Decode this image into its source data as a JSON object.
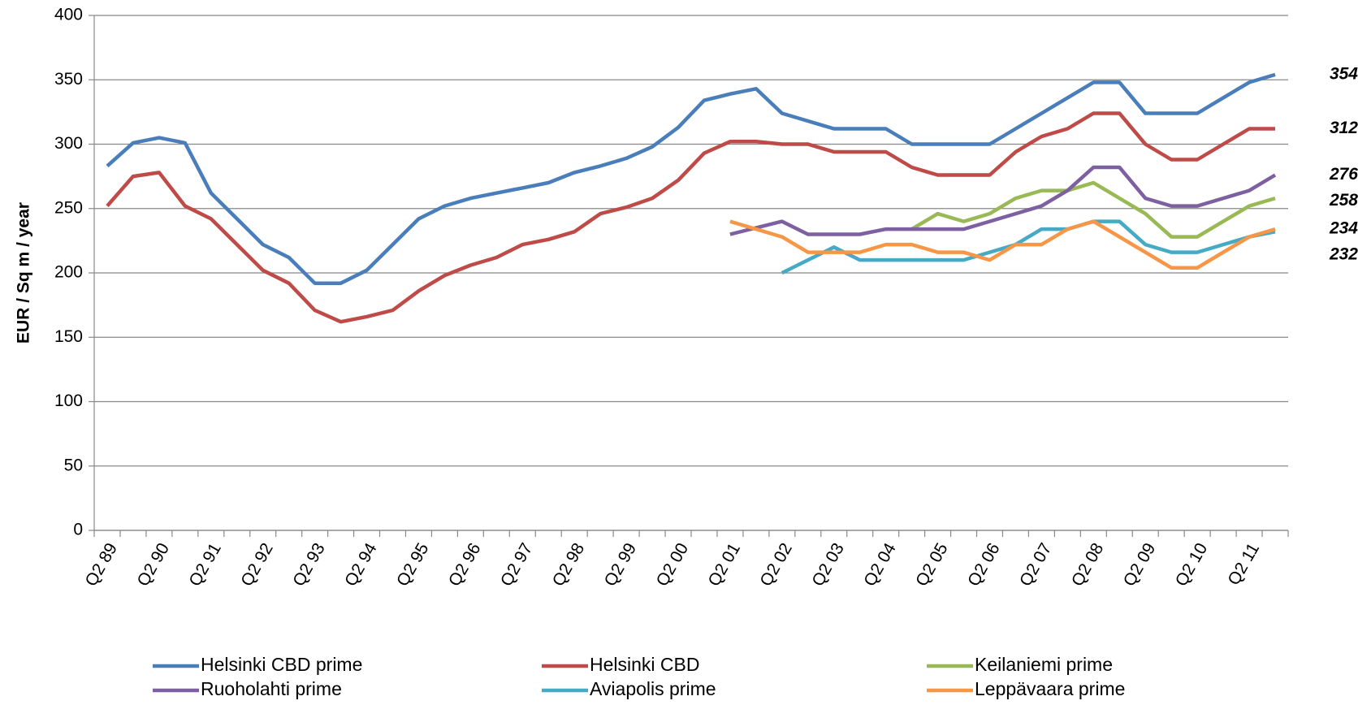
{
  "chart_data": {
    "type": "line",
    "ylabel": "EUR / Sq m / year",
    "categories": [
      "Q2 89",
      null,
      "Q2 90",
      null,
      "Q2 91",
      null,
      "Q2 92",
      null,
      "Q2 93",
      null,
      "Q2 94",
      null,
      "Q2 95",
      null,
      "Q2 96",
      null,
      "Q2 97",
      null,
      "Q2 98",
      null,
      "Q2 99",
      null,
      "Q2 00",
      null,
      "Q2 01",
      null,
      "Q2 02",
      null,
      "Q2 03",
      null,
      "Q2 04",
      null,
      "Q2 05",
      null,
      "Q2 06",
      null,
      "Q2 07",
      null,
      "Q2 08",
      null,
      "Q2 09",
      null,
      "Q2 10",
      null,
      "Q2 11",
      null
    ],
    "series": [
      {
        "name": "Helsinki CBD prime",
        "color": "#4a7ebb",
        "values": [
          283,
          301,
          305,
          301,
          262,
          242,
          222,
          212,
          192,
          192,
          202,
          222,
          242,
          252,
          258,
          262,
          266,
          270,
          278,
          283,
          289,
          298,
          313,
          334,
          339,
          343,
          324,
          318,
          312,
          312,
          312,
          300,
          300,
          300,
          300,
          312,
          324,
          336,
          348,
          348,
          324,
          324,
          324,
          336,
          348,
          354
        ]
      },
      {
        "name": "Helsinki CBD",
        "color": "#be4b48",
        "values": [
          252,
          275,
          278,
          252,
          242,
          222,
          202,
          192,
          171,
          162,
          166,
          171,
          186,
          198,
          206,
          212,
          222,
          226,
          232,
          246,
          251,
          258,
          272,
          293,
          302,
          302,
          300,
          300,
          294,
          294,
          294,
          282,
          276,
          276,
          276,
          294,
          306,
          312,
          324,
          324,
          300,
          288,
          288,
          300,
          312,
          312
        ]
      },
      {
        "name": "Keilaniemi prime",
        "color": "#98b954",
        "values": [
          null,
          null,
          null,
          null,
          null,
          null,
          null,
          null,
          null,
          null,
          null,
          null,
          null,
          null,
          null,
          null,
          null,
          null,
          null,
          null,
          null,
          null,
          null,
          null,
          null,
          null,
          null,
          null,
          null,
          null,
          null,
          234,
          246,
          240,
          246,
          258,
          264,
          264,
          270,
          258,
          246,
          228,
          228,
          240,
          252,
          258
        ]
      },
      {
        "name": "Ruoholahti prime",
        "color": "#7d60a0",
        "values": [
          null,
          null,
          null,
          null,
          null,
          null,
          null,
          null,
          null,
          null,
          null,
          null,
          null,
          null,
          null,
          null,
          null,
          null,
          null,
          null,
          null,
          null,
          null,
          null,
          230,
          235,
          240,
          230,
          230,
          230,
          234,
          234,
          234,
          234,
          240,
          246,
          252,
          264,
          282,
          282,
          258,
          252,
          252,
          258,
          264,
          276
        ]
      },
      {
        "name": "Aviapolis prime",
        "color": "#46aac5",
        "values": [
          null,
          null,
          null,
          null,
          null,
          null,
          null,
          null,
          null,
          null,
          null,
          null,
          null,
          null,
          null,
          null,
          null,
          null,
          null,
          null,
          null,
          null,
          null,
          null,
          null,
          null,
          200,
          210,
          220,
          210,
          210,
          210,
          210,
          210,
          216,
          222,
          234,
          234,
          240,
          240,
          222,
          216,
          216,
          222,
          228,
          232
        ]
      },
      {
        "name": "Leppävaara prime",
        "color": "#f79646",
        "values": [
          null,
          null,
          null,
          null,
          null,
          null,
          null,
          null,
          null,
          null,
          null,
          null,
          null,
          null,
          null,
          null,
          null,
          null,
          null,
          null,
          null,
          null,
          null,
          null,
          240,
          234,
          228,
          216,
          216,
          216,
          222,
          222,
          216,
          216,
          210,
          222,
          222,
          234,
          240,
          228,
          216,
          204,
          204,
          216,
          228,
          234
        ]
      }
    ],
    "end_labels": [
      0,
      1,
      3,
      2,
      5,
      4
    ],
    "ylim": [
      0,
      400
    ],
    "yticks": [
      0,
      50,
      100,
      150,
      200,
      250,
      300,
      350,
      400
    ],
    "grid": true,
    "legend": "bottom"
  }
}
